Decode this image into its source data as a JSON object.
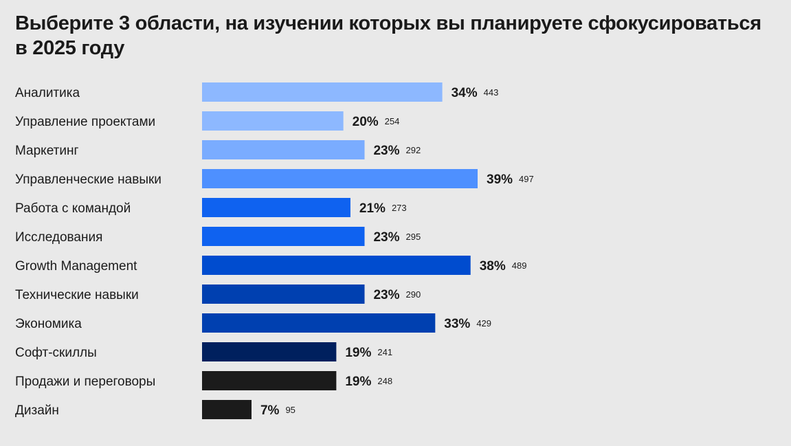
{
  "title": "Выберите 3 области, на изучении которых вы планируете сфокусироваться в 2025 году",
  "chart_data": {
    "type": "bar",
    "orientation": "horizontal",
    "title": "Выберите 3 области, на изучении которых вы планируете сфокусироваться в 2025 году",
    "categories": [
      "Аналитика",
      "Управление проектами",
      "Маркетинг",
      "Управленческие навыки",
      "Работа с командой",
      "Исследования",
      "Growth Management",
      "Технические навыки",
      "Экономика",
      "Софт-скиллы",
      "Продажи и переговоры",
      "Дизайн"
    ],
    "values": [
      34,
      20,
      23,
      39,
      21,
      23,
      38,
      23,
      33,
      19,
      19,
      7
    ],
    "value_labels": [
      "34%",
      "20%",
      "23%",
      "39%",
      "21%",
      "23%",
      "38%",
      "23%",
      "33%",
      "19%",
      "19%",
      "7%"
    ],
    "counts": [
      443,
      254,
      292,
      497,
      273,
      295,
      489,
      290,
      429,
      241,
      248,
      95
    ],
    "colors": [
      "#8db8ff",
      "#8db8ff",
      "#7aacff",
      "#4e90ff",
      "#0f62f0",
      "#0f62f0",
      "#004ccf",
      "#0040b0",
      "#0040b0",
      "#00205e",
      "#1b1b1b",
      "#1b1b1b"
    ],
    "grid": false,
    "legend": "none",
    "xlim": [
      0,
      39
    ]
  }
}
